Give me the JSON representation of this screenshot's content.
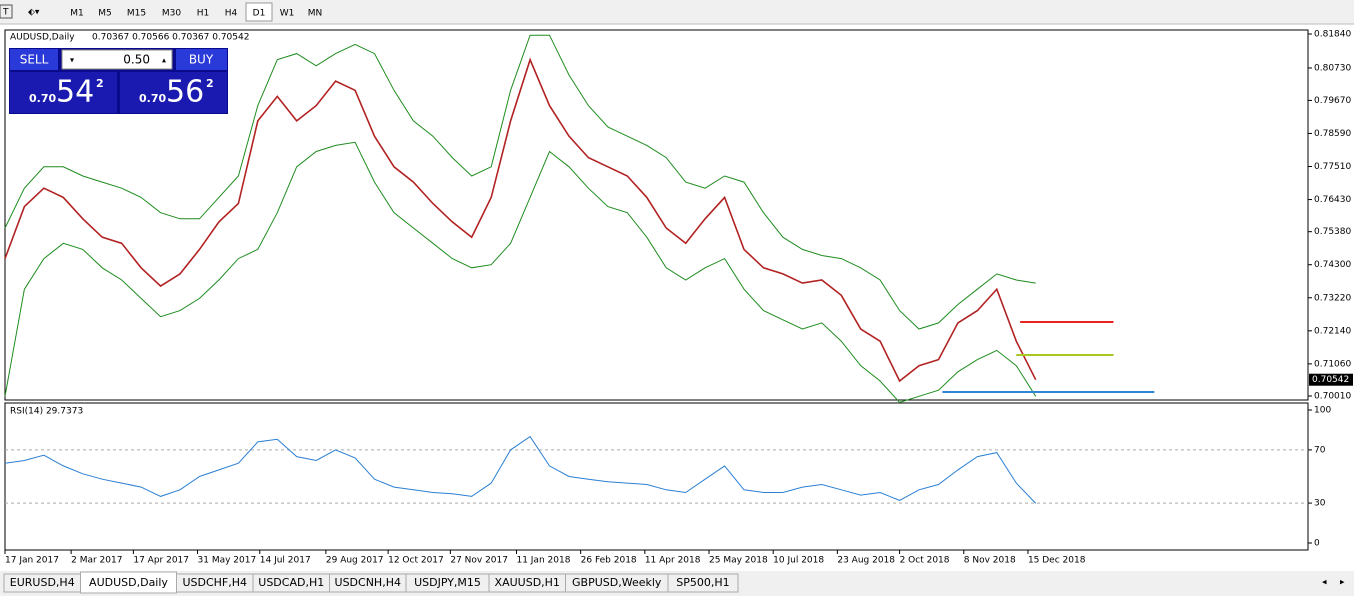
{
  "ui": {
    "toolbar": [
      "M1",
      "M5",
      "M15",
      "M30",
      "H1",
      "H4",
      "D1",
      "W1",
      "MN"
    ],
    "active_timeframe": "D1",
    "trade_panel": {
      "sell": "SELL",
      "buy": "BUY",
      "lots": "0.50",
      "sell_big": "0.70",
      "sell_pips": "54",
      "sell_frac": "2",
      "buy_big": "0.70",
      "buy_pips": "56",
      "buy_frac": "2"
    },
    "tabs": [
      "EURUSD,H4",
      "AUDUSD,Daily",
      "USDCHF,H4",
      "USDCAD,H1",
      "USDCNH,H4",
      "USDJPY,M15",
      "XAUUSD,H1",
      "GBPUSD,Weekly",
      "SP500,H1"
    ],
    "active_tab": "AUDUSD,Daily"
  },
  "chart_data": [
    {
      "type": "line",
      "title": "AUDUSD,Daily",
      "subtitle": "0.70367 0.70566 0.70367 0.70542",
      "last_price": 0.70542,
      "x": [
        0,
        1,
        2,
        3,
        4,
        5,
        6,
        7,
        8,
        9,
        10,
        11,
        12,
        13,
        14,
        15,
        16,
        17,
        18,
        19,
        20,
        21,
        22,
        23,
        24,
        25,
        26,
        27,
        28,
        29,
        30,
        31,
        32,
        33,
        34,
        35,
        36,
        37,
        38,
        39,
        40,
        41,
        42,
        43,
        44,
        45,
        46,
        47,
        48,
        49,
        50,
        51,
        52,
        53
      ],
      "xlim": [
        0,
        67
      ],
      "xticks": [
        {
          "value": 0,
          "label": "17 Jan 2017"
        },
        {
          "value": 3.4,
          "label": "2 Mar 2017"
        },
        {
          "value": 6.6,
          "label": "17 Apr 2017"
        },
        {
          "value": 9.9,
          "label": "31 May 2017"
        },
        {
          "value": 13.1,
          "label": "14 Jul 2017"
        },
        {
          "value": 16.5,
          "label": "29 Aug 2017"
        },
        {
          "value": 19.7,
          "label": "12 Oct 2017"
        },
        {
          "value": 22.9,
          "label": "27 Nov 2017"
        },
        {
          "value": 26.3,
          "label": "11 Jan 2018"
        },
        {
          "value": 29.6,
          "label": "26 Feb 2018"
        },
        {
          "value": 32.9,
          "label": "11 Apr 2018"
        },
        {
          "value": 36.2,
          "label": "25 May 2018"
        },
        {
          "value": 39.5,
          "label": "10 Jul 2018"
        },
        {
          "value": 42.8,
          "label": "23 Aug 2018"
        },
        {
          "value": 46,
          "label": "2 Oct 2018"
        },
        {
          "value": 49.3,
          "label": "8 Nov 2018"
        },
        {
          "value": 52.6,
          "label": "15 Dec 2018"
        }
      ],
      "ylim": [
        0.69879,
        0.81971
      ],
      "yticks": [
        {
          "value": 0.8184,
          "label": "0.81840"
        },
        {
          "value": 0.8073,
          "label": "0.80730"
        },
        {
          "value": 0.7967,
          "label": "0.79670"
        },
        {
          "value": 0.7859,
          "label": "0.78590"
        },
        {
          "value": 0.7751,
          "label": "0.77510"
        },
        {
          "value": 0.7643,
          "label": "0.76430"
        },
        {
          "value": 0.7538,
          "label": "0.75380"
        },
        {
          "value": 0.743,
          "label": "0.74300"
        },
        {
          "value": 0.7322,
          "label": "0.73220"
        },
        {
          "value": 0.7214,
          "label": "0.72140"
        },
        {
          "value": 0.7106,
          "label": "0.71060"
        },
        {
          "value": 0.7001,
          "label": "0.70010"
        }
      ],
      "series": [
        {
          "color": "#b22222",
          "values": [
            0.745,
            0.762,
            0.768,
            0.765,
            0.758,
            0.752,
            0.75,
            0.742,
            0.736,
            0.74,
            0.748,
            0.757,
            0.763,
            0.79,
            0.798,
            0.79,
            0.795,
            0.803,
            0.8,
            0.785,
            0.775,
            0.77,
            0.763,
            0.757,
            0.752,
            0.765,
            0.79,
            0.81,
            0.795,
            0.785,
            0.778,
            0.775,
            0.772,
            0.765,
            0.755,
            0.75,
            0.758,
            0.765,
            0.748,
            0.742,
            0.74,
            0.737,
            0.738,
            0.733,
            0.722,
            0.718,
            0.705,
            0.71,
            0.712,
            0.724,
            0.728,
            0.735,
            0.718,
            0.70542
          ]
        },
        {
          "color": "#1e8c1e",
          "values": [
            0.755,
            0.768,
            0.775,
            0.775,
            0.772,
            0.77,
            0.768,
            0.765,
            0.76,
            0.758,
            0.758,
            0.765,
            0.772,
            0.795,
            0.81,
            0.812,
            0.808,
            0.812,
            0.815,
            0.812,
            0.8,
            0.79,
            0.785,
            0.778,
            0.772,
            0.775,
            0.8,
            0.818,
            0.818,
            0.805,
            0.795,
            0.788,
            0.785,
            0.782,
            0.778,
            0.77,
            0.768,
            0.772,
            0.77,
            0.76,
            0.752,
            0.748,
            0.746,
            0.745,
            0.742,
            0.738,
            0.728,
            0.722,
            0.724,
            0.73,
            0.735,
            0.74,
            0.738,
            0.737
          ]
        },
        {
          "color": "#1e8c1e",
          "values": [
            0.7,
            0.735,
            0.745,
            0.75,
            0.748,
            0.742,
            0.738,
            0.732,
            0.726,
            0.728,
            0.732,
            0.738,
            0.745,
            0.748,
            0.76,
            0.775,
            0.78,
            0.782,
            0.783,
            0.77,
            0.76,
            0.755,
            0.75,
            0.745,
            0.742,
            0.743,
            0.75,
            0.765,
            0.78,
            0.775,
            0.768,
            0.762,
            0.76,
            0.752,
            0.742,
            0.738,
            0.742,
            0.745,
            0.735,
            0.728,
            0.725,
            0.722,
            0.724,
            0.718,
            0.71,
            0.705,
            0.698,
            0.7,
            0.702,
            0.708,
            0.712,
            0.715,
            0.71,
            0.7
          ]
        }
      ],
      "levels": [
        {
          "value": 0.7243,
          "x": [
            52.2,
            57
          ],
          "color": "#e8231e"
        },
        {
          "value": 0.7135,
          "x": [
            52,
            57
          ],
          "color": "#a8c81e"
        },
        {
          "value": 0.7014,
          "x": [
            48.2,
            59.1
          ],
          "color": "#2f86d4"
        }
      ]
    },
    {
      "type": "line",
      "title": "RSI(14) 29.7373",
      "x": [
        0,
        1,
        2,
        3,
        4,
        5,
        6,
        7,
        8,
        9,
        10,
        11,
        12,
        13,
        14,
        15,
        16,
        17,
        18,
        19,
        20,
        21,
        22,
        23,
        24,
        25,
        26,
        27,
        28,
        29,
        30,
        31,
        32,
        33,
        34,
        35,
        36,
        37,
        38,
        39,
        40,
        41,
        42,
        43,
        44,
        45,
        46,
        47,
        48,
        49,
        50,
        51,
        52,
        53
      ],
      "xlim": [
        0,
        67
      ],
      "ylim": [
        0,
        100
      ],
      "yticks": [
        0,
        30,
        70,
        100
      ],
      "color": "#2a7fd4",
      "values": [
        60,
        62,
        66,
        58,
        52,
        48,
        45,
        42,
        35,
        40,
        50,
        55,
        60,
        76,
        78,
        65,
        62,
        70,
        64,
        48,
        42,
        40,
        38,
        37,
        35,
        45,
        70,
        80,
        58,
        50,
        48,
        46,
        45,
        44,
        40,
        38,
        48,
        58,
        40,
        38,
        38,
        42,
        44,
        40,
        36,
        38,
        32,
        40,
        44,
        55,
        65,
        68,
        45,
        29.7373
      ]
    }
  ]
}
